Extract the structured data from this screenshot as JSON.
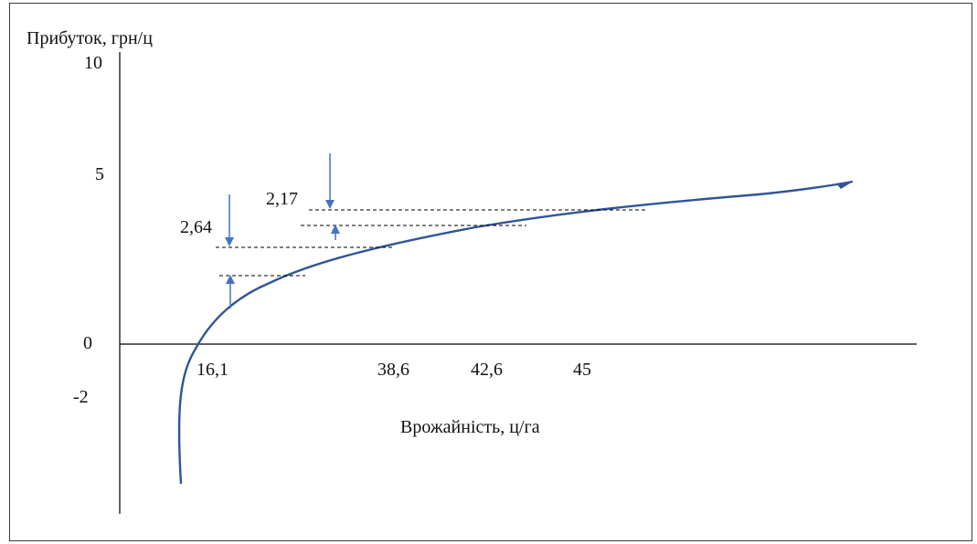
{
  "chart_data": {
    "type": "line",
    "ylabel": "Прибуток, грн/ц",
    "xlabel": "Врожайність, ц/га",
    "y_ticks": [
      "10",
      "5",
      "0",
      "-2"
    ],
    "x_tick_labels": [
      "16,1",
      "38,6",
      "42,6",
      "45"
    ],
    "annotations": [
      {
        "label": "2,64",
        "arrow": "down"
      },
      {
        "label": "2,17",
        "arrow": "down"
      }
    ],
    "grid": false,
    "legend": "none"
  },
  "colors": {
    "curve": "#2f5597",
    "arrow": "#4472c4",
    "axis": "#000000",
    "frame": "#3a3a3a"
  }
}
